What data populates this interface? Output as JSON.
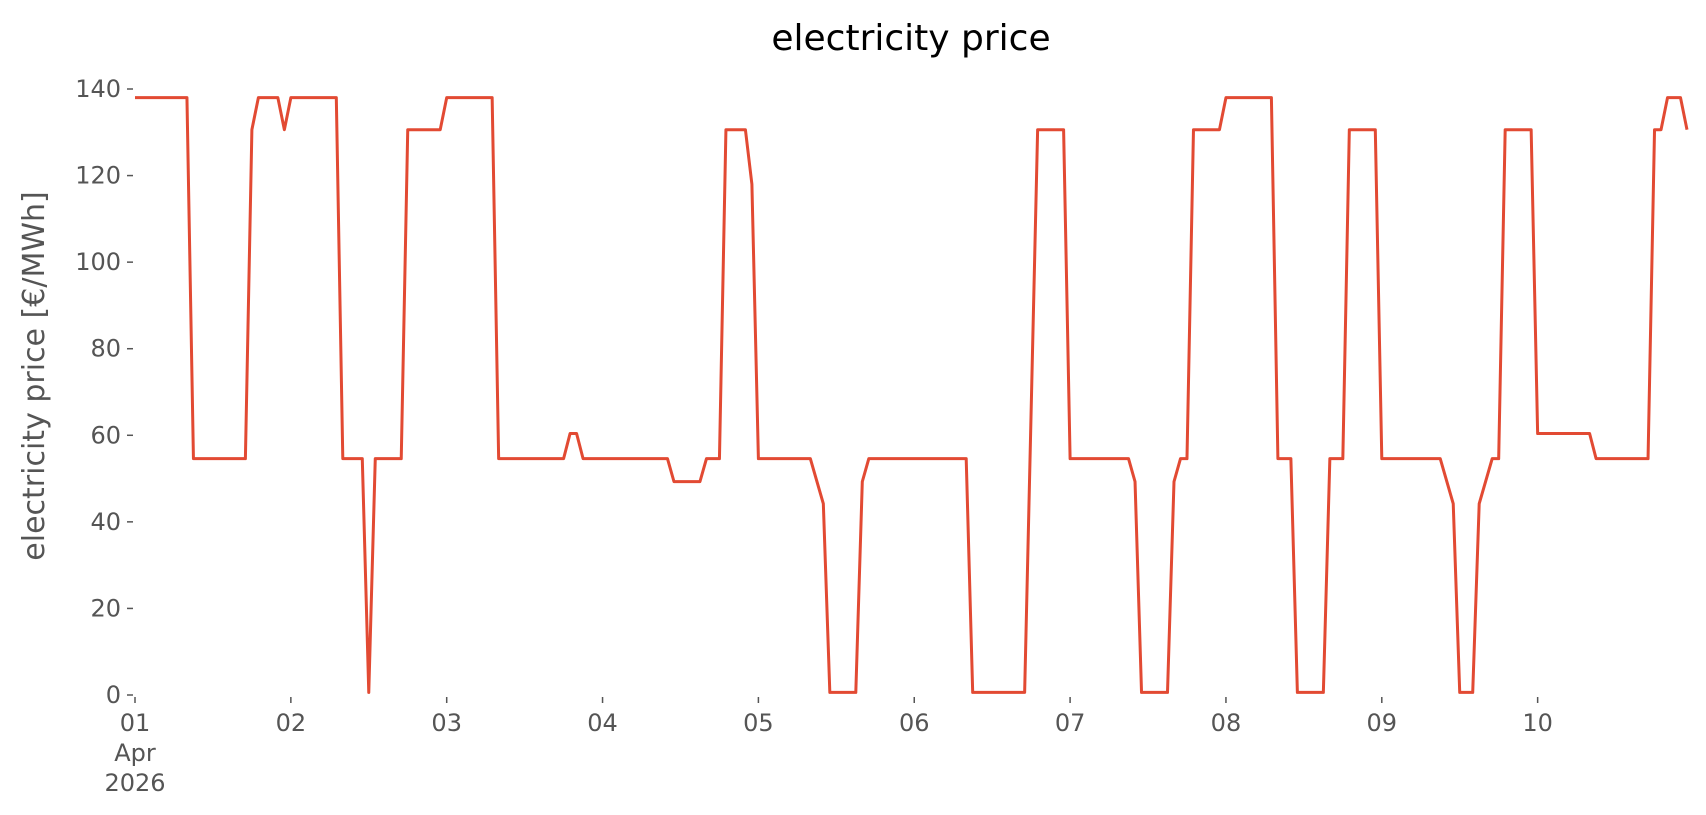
{
  "chart_data": {
    "type": "line",
    "title": "electricity price",
    "ylabel": "electricity price [€/MWh]",
    "color": "#E24A33",
    "x": [
      "2026-04-01 00:00",
      "2026-04-01 08:00",
      "2026-04-01 09:00",
      "2026-04-01 17:00",
      "2026-04-01 18:00",
      "2026-04-01 19:00",
      "2026-04-01 22:00",
      "2026-04-01 23:00",
      "2026-04-02 00:00",
      "2026-04-02 07:00",
      "2026-04-02 08:00",
      "2026-04-02 11:00",
      "2026-04-02 12:00",
      "2026-04-02 13:00",
      "2026-04-02 17:00",
      "2026-04-02 18:00",
      "2026-04-02 23:00",
      "2026-04-03 00:00",
      "2026-04-03 07:00",
      "2026-04-03 08:00",
      "2026-04-03 18:00",
      "2026-04-03 19:00",
      "2026-04-03 20:00",
      "2026-04-03 21:00",
      "2026-04-04 10:00",
      "2026-04-04 11:00",
      "2026-04-04 15:00",
      "2026-04-04 16:00",
      "2026-04-04 18:00",
      "2026-04-04 19:00",
      "2026-04-04 22:00",
      "2026-04-04 23:00",
      "2026-04-05 00:00",
      "2026-04-05 08:00",
      "2026-04-05 10:00",
      "2026-04-05 11:00",
      "2026-04-05 15:00",
      "2026-04-05 16:00",
      "2026-04-05 17:00",
      "2026-04-06 08:00",
      "2026-04-06 09:00",
      "2026-04-06 17:00",
      "2026-04-06 19:00",
      "2026-04-06 23:00",
      "2026-04-07 00:00",
      "2026-04-07 09:00",
      "2026-04-07 10:00",
      "2026-04-07 11:00",
      "2026-04-07 15:00",
      "2026-04-07 16:00",
      "2026-04-07 17:00",
      "2026-04-07 18:00",
      "2026-04-07 19:00",
      "2026-04-07 23:00",
      "2026-04-08 00:00",
      "2026-04-08 07:00",
      "2026-04-08 08:00",
      "2026-04-08 10:00",
      "2026-04-08 11:00",
      "2026-04-08 15:00",
      "2026-04-08 16:00",
      "2026-04-08 18:00",
      "2026-04-08 19:00",
      "2026-04-08 23:00",
      "2026-04-09 00:00",
      "2026-04-09 09:00",
      "2026-04-09 11:00",
      "2026-04-09 12:00",
      "2026-04-09 14:00",
      "2026-04-09 15:00",
      "2026-04-09 17:00",
      "2026-04-09 18:00",
      "2026-04-09 19:00",
      "2026-04-09 23:00",
      "2026-04-10 00:00",
      "2026-04-10 08:00",
      "2026-04-10 09:00",
      "2026-04-10 17:00",
      "2026-04-10 18:00",
      "2026-04-10 19:00",
      "2026-04-10 20:00",
      "2026-04-10 22:00",
      "2026-04-10 23:00"
    ],
    "values": [
      138,
      138,
      54.6,
      54.6,
      130.6,
      138,
      138,
      130.6,
      138,
      138,
      54.6,
      54.6,
      0.6,
      54.6,
      54.6,
      130.6,
      130.6,
      138,
      138,
      54.6,
      54.6,
      60.4,
      60.4,
      54.6,
      54.6,
      49.3,
      49.3,
      54.6,
      54.6,
      130.6,
      130.6,
      118,
      54.6,
      54.6,
      44.2,
      0.6,
      0.6,
      49.3,
      54.6,
      54.6,
      0.6,
      0.6,
      130.6,
      130.6,
      54.6,
      54.6,
      49.3,
      0.6,
      0.6,
      49.3,
      54.6,
      54.6,
      130.6,
      130.6,
      138,
      138,
      54.6,
      54.6,
      0.6,
      0.6,
      54.6,
      54.6,
      130.6,
      130.6,
      54.6,
      54.6,
      44.2,
      0.6,
      0.6,
      44.2,
      54.6,
      54.6,
      130.6,
      130.6,
      60.4,
      60.4,
      54.6,
      54.6,
      130.6,
      130.6,
      138,
      138,
      130.6
    ],
    "xlim": [
      "2026-04-01 00:00",
      "2026-04-10 23:00"
    ],
    "xticks": [
      {
        "value": "2026-04-01 00:00",
        "label": "01\nApr\n2026"
      },
      {
        "value": "2026-04-02 00:00",
        "label": "02"
      },
      {
        "value": "2026-04-03 00:00",
        "label": "03"
      },
      {
        "value": "2026-04-04 00:00",
        "label": "04"
      },
      {
        "value": "2026-04-05 00:00",
        "label": "05"
      },
      {
        "value": "2026-04-06 00:00",
        "label": "06"
      },
      {
        "value": "2026-04-07 00:00",
        "label": "07"
      },
      {
        "value": "2026-04-08 00:00",
        "label": "08"
      },
      {
        "value": "2026-04-09 00:00",
        "label": "09"
      },
      {
        "value": "2026-04-10 00:00",
        "label": "10"
      }
    ],
    "ylim": [
      0,
      140
    ],
    "yticks": [
      0,
      20,
      40,
      60,
      80,
      100,
      120,
      140
    ],
    "grid": false
  }
}
